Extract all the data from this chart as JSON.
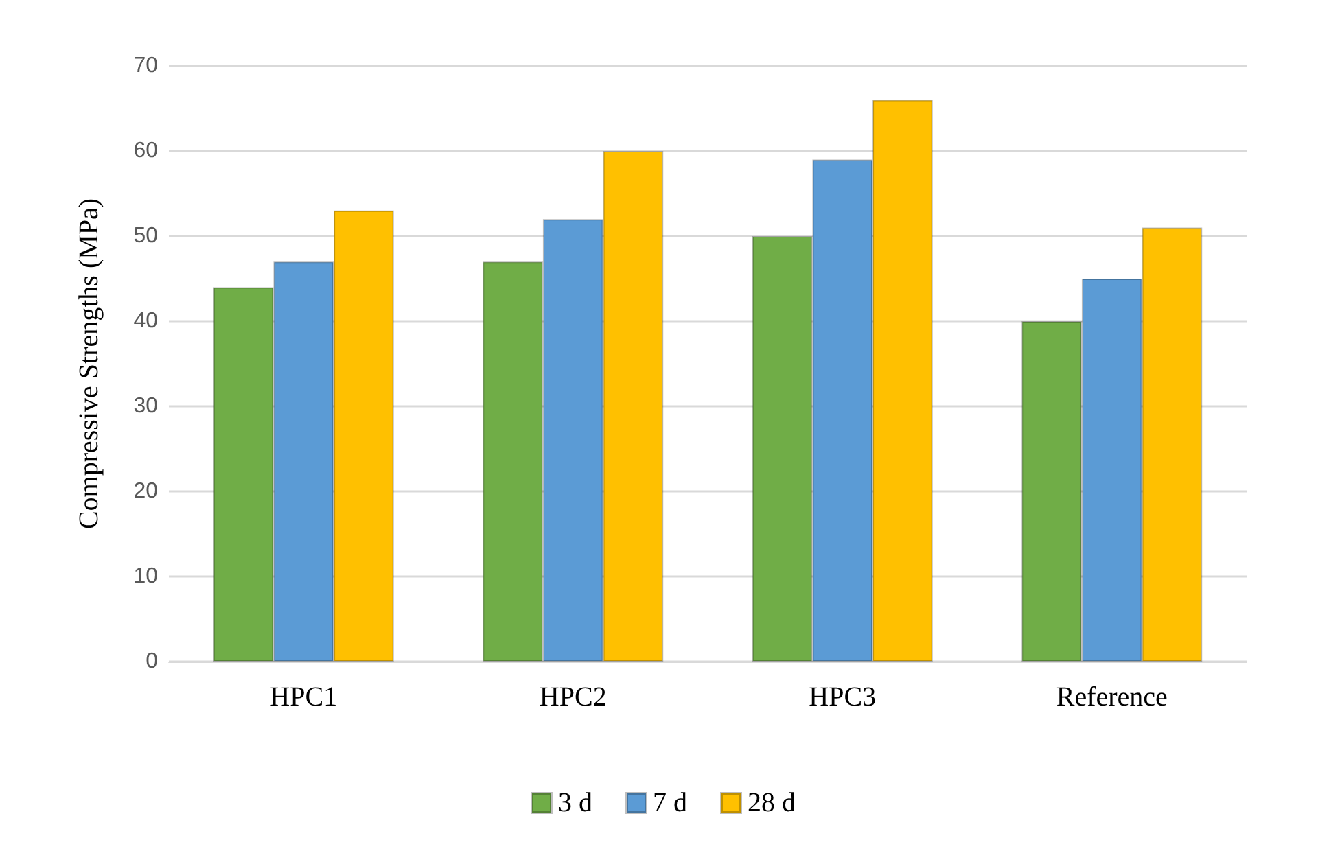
{
  "chart_data": {
    "type": "bar",
    "ylabel": "Compressive Strengths (MPa)",
    "categories": [
      "HPC1",
      "HPC2",
      "HPC3",
      "Reference"
    ],
    "series": [
      {
        "name": "3 d",
        "color": "#70ad47",
        "values": [
          44,
          47,
          50,
          40
        ]
      },
      {
        "name": "7 d",
        "color": "#5b9bd5",
        "values": [
          47,
          52,
          59,
          45
        ]
      },
      {
        "name": "28 d",
        "color": "#ffc000",
        "values": [
          53,
          60,
          66,
          51
        ]
      }
    ],
    "ylim": [
      0,
      70
    ],
    "yticks": [
      0,
      10,
      20,
      30,
      40,
      50,
      60,
      70
    ],
    "grid": "y",
    "legend": "bottom"
  }
}
